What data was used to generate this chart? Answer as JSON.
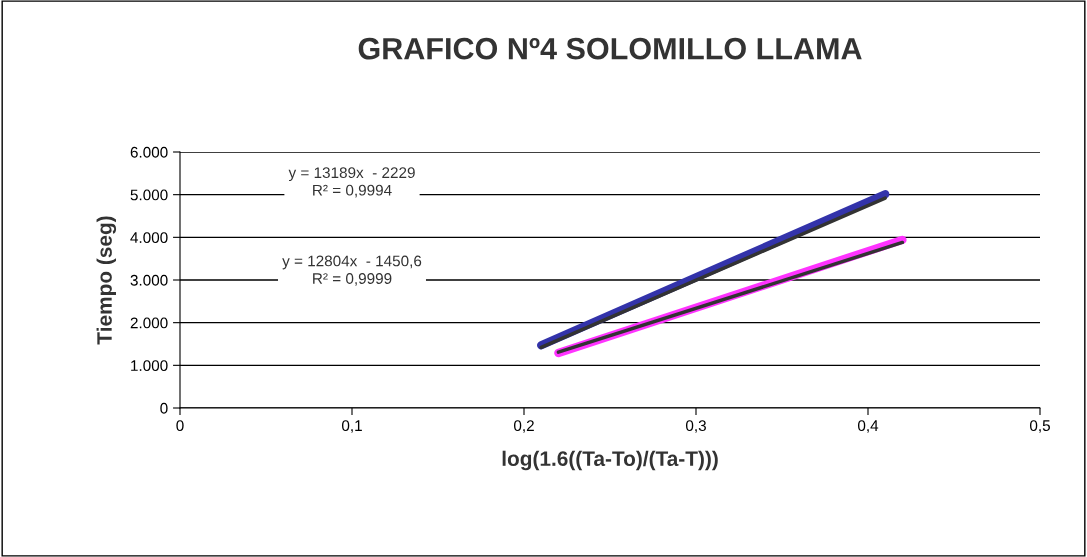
{
  "chart_data": {
    "type": "line",
    "title": "GRAFICO Nº4 SOLOMILLO LLAMA",
    "xlabel": "log(1.6((Ta-To)/(Ta-T)))",
    "ylabel": "Tiempo (seg)",
    "series": [
      {
        "color": "#3333aa",
        "x": [
          0.21,
          0.41
        ],
        "values": [
          1470,
          5010
        ]
      },
      {
        "color": "#ff33ff",
        "x": [
          0.22,
          0.42
        ],
        "values": [
          1290,
          3940
        ]
      },
      {
        "type": "line",
        "color": "#333333",
        "x": [
          0.21,
          0.41
        ],
        "values": [
          1420,
          4920
        ]
      },
      {
        "type": "line",
        "color": "#333333",
        "x": [
          0.22,
          0.42
        ],
        "values": [
          1310,
          3880
        ]
      }
    ],
    "annotations": [
      "y = 13189x  - 2229\nR² = 0,9994",
      "y = 12804x  - 1450,6\nR² = 0,9999"
    ],
    "xlim": [
      0,
      0.5
    ],
    "xticks": [
      {
        "value": 0,
        "label": "0"
      },
      {
        "value": 0.1,
        "label": "0,1"
      },
      {
        "value": 0.2,
        "label": "0,2"
      },
      {
        "value": 0.3,
        "label": "0,3"
      },
      {
        "value": 0.4,
        "label": "0,4"
      },
      {
        "value": 0.5,
        "label": "0,5"
      }
    ],
    "ylim": [
      0,
      6000
    ],
    "yticks": [
      {
        "value": 0,
        "label": "0"
      },
      {
        "value": 1000,
        "label": "1.000"
      },
      {
        "value": 2000,
        "label": "2.000"
      },
      {
        "value": 3000,
        "label": "3.000"
      },
      {
        "value": 4000,
        "label": "4.000"
      },
      {
        "value": 5000,
        "label": "5.000"
      },
      {
        "value": 6000,
        "label": "6.000"
      }
    ],
    "grid": "y",
    "legend": false,
    "marker": "none",
    "line_style": "solid"
  }
}
